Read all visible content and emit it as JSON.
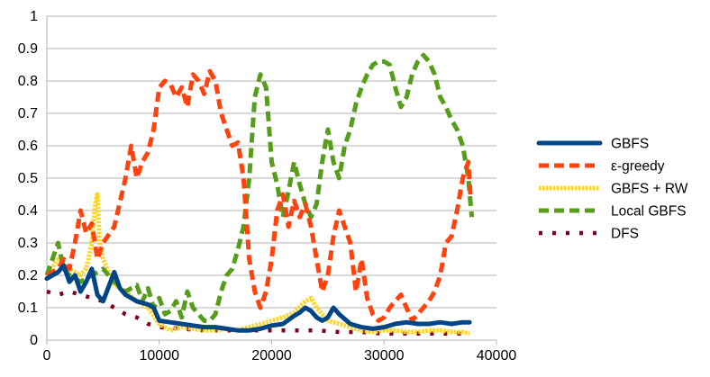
{
  "chart_data": {
    "type": "line",
    "title": "",
    "xlabel": "",
    "ylabel": "",
    "xlim": [
      0,
      40000
    ],
    "ylim": [
      0,
      1
    ],
    "xticks": [
      "0",
      "10000",
      "20000",
      "30000",
      "40000"
    ],
    "yticks": [
      "0",
      "0.1",
      "0.2",
      "0.3",
      "0.4",
      "0.5",
      "0.6",
      "0.7",
      "0.8",
      "0.9",
      "1"
    ],
    "grid": "horizontal",
    "legend_position": "right",
    "series": [
      {
        "name": "GBFS",
        "color": "#004586",
        "style": "solid",
        "points": [
          [
            0,
            0.19
          ],
          [
            1000,
            0.21
          ],
          [
            1500,
            0.23
          ],
          [
            2000,
            0.18
          ],
          [
            2500,
            0.2
          ],
          [
            3000,
            0.15
          ],
          [
            3500,
            0.18
          ],
          [
            4000,
            0.22
          ],
          [
            4500,
            0.14
          ],
          [
            5000,
            0.12
          ],
          [
            6000,
            0.21
          ],
          [
            6500,
            0.16
          ],
          [
            7000,
            0.14
          ],
          [
            8000,
            0.12
          ],
          [
            9000,
            0.11
          ],
          [
            9500,
            0.1
          ],
          [
            10000,
            0.06
          ],
          [
            11000,
            0.055
          ],
          [
            12000,
            0.05
          ],
          [
            13000,
            0.045
          ],
          [
            14000,
            0.04
          ],
          [
            15000,
            0.04
          ],
          [
            16000,
            0.035
          ],
          [
            17000,
            0.03
          ],
          [
            18000,
            0.03
          ],
          [
            19000,
            0.035
          ],
          [
            20000,
            0.045
          ],
          [
            21000,
            0.05
          ],
          [
            22000,
            0.075
          ],
          [
            22500,
            0.085
          ],
          [
            23000,
            0.1
          ],
          [
            23500,
            0.09
          ],
          [
            24000,
            0.07
          ],
          [
            24500,
            0.06
          ],
          [
            25000,
            0.07
          ],
          [
            25500,
            0.1
          ],
          [
            26000,
            0.08
          ],
          [
            27000,
            0.05
          ],
          [
            28000,
            0.04
          ],
          [
            29000,
            0.035
          ],
          [
            30000,
            0.04
          ],
          [
            31000,
            0.05
          ],
          [
            32000,
            0.055
          ],
          [
            33000,
            0.05
          ],
          [
            34000,
            0.05
          ],
          [
            35000,
            0.055
          ],
          [
            36000,
            0.05
          ],
          [
            37000,
            0.055
          ],
          [
            37600,
            0.055
          ]
        ]
      },
      {
        "name": "ε-greedy",
        "color": "#ff420e",
        "style": "dashed",
        "points": [
          [
            0,
            0.2
          ],
          [
            1000,
            0.22
          ],
          [
            1500,
            0.25
          ],
          [
            2000,
            0.22
          ],
          [
            2500,
            0.3
          ],
          [
            3000,
            0.4
          ],
          [
            3500,
            0.33
          ],
          [
            4000,
            0.36
          ],
          [
            4500,
            0.25
          ],
          [
            5000,
            0.3
          ],
          [
            6000,
            0.35
          ],
          [
            7000,
            0.5
          ],
          [
            7500,
            0.6
          ],
          [
            8000,
            0.5
          ],
          [
            8500,
            0.55
          ],
          [
            9000,
            0.58
          ],
          [
            9500,
            0.65
          ],
          [
            10000,
            0.78
          ],
          [
            10500,
            0.8
          ],
          [
            11000,
            0.79
          ],
          [
            11500,
            0.75
          ],
          [
            12000,
            0.78
          ],
          [
            12500,
            0.72
          ],
          [
            13000,
            0.82
          ],
          [
            13500,
            0.8
          ],
          [
            14000,
            0.76
          ],
          [
            14500,
            0.83
          ],
          [
            15000,
            0.8
          ],
          [
            15500,
            0.7
          ],
          [
            16000,
            0.65
          ],
          [
            16500,
            0.6
          ],
          [
            17000,
            0.61
          ],
          [
            17500,
            0.5
          ],
          [
            18000,
            0.25
          ],
          [
            18500,
            0.15
          ],
          [
            19000,
            0.1
          ],
          [
            19500,
            0.15
          ],
          [
            20000,
            0.25
          ],
          [
            20500,
            0.4
          ],
          [
            21000,
            0.45
          ],
          [
            21500,
            0.35
          ],
          [
            22000,
            0.43
          ],
          [
            22500,
            0.38
          ],
          [
            23000,
            0.42
          ],
          [
            23500,
            0.35
          ],
          [
            24000,
            0.25
          ],
          [
            24500,
            0.15
          ],
          [
            25000,
            0.2
          ],
          [
            25500,
            0.32
          ],
          [
            26000,
            0.4
          ],
          [
            26500,
            0.35
          ],
          [
            27000,
            0.3
          ],
          [
            27500,
            0.15
          ],
          [
            28000,
            0.25
          ],
          [
            28500,
            0.13
          ],
          [
            29000,
            0.08
          ],
          [
            29500,
            0.06
          ],
          [
            30000,
            0.07
          ],
          [
            30500,
            0.1
          ],
          [
            31000,
            0.12
          ],
          [
            31500,
            0.14
          ],
          [
            32000,
            0.1
          ],
          [
            32500,
            0.06
          ],
          [
            33000,
            0.08
          ],
          [
            33500,
            0.1
          ],
          [
            34000,
            0.12
          ],
          [
            34500,
            0.15
          ],
          [
            35000,
            0.2
          ],
          [
            35500,
            0.3
          ],
          [
            36000,
            0.32
          ],
          [
            36500,
            0.4
          ],
          [
            37000,
            0.5
          ],
          [
            37500,
            0.55
          ],
          [
            37700,
            0.44
          ]
        ]
      },
      {
        "name": "GBFS + RW",
        "color": "#ffd320",
        "style": "dotted",
        "points": [
          [
            0,
            0.2
          ],
          [
            1000,
            0.25
          ],
          [
            2000,
            0.22
          ],
          [
            3000,
            0.2
          ],
          [
            3500,
            0.22
          ],
          [
            4000,
            0.3
          ],
          [
            4300,
            0.42
          ],
          [
            4500,
            0.45
          ],
          [
            4700,
            0.3
          ],
          [
            5000,
            0.25
          ],
          [
            6000,
            0.17
          ],
          [
            7000,
            0.15
          ],
          [
            8000,
            0.12
          ],
          [
            9000,
            0.1
          ],
          [
            10000,
            0.05
          ],
          [
            11000,
            0.03
          ],
          [
            12000,
            0.04
          ],
          [
            13000,
            0.035
          ],
          [
            14000,
            0.03
          ],
          [
            15000,
            0.03
          ],
          [
            16000,
            0.035
          ],
          [
            17000,
            0.03
          ],
          [
            18000,
            0.04
          ],
          [
            19000,
            0.05
          ],
          [
            20000,
            0.06
          ],
          [
            21000,
            0.07
          ],
          [
            22000,
            0.085
          ],
          [
            23000,
            0.12
          ],
          [
            23500,
            0.13
          ],
          [
            24000,
            0.1
          ],
          [
            25000,
            0.06
          ],
          [
            26000,
            0.05
          ],
          [
            27000,
            0.04
          ],
          [
            28000,
            0.03
          ],
          [
            29000,
            0.025
          ],
          [
            30000,
            0.03
          ],
          [
            31000,
            0.03
          ],
          [
            32000,
            0.025
          ],
          [
            33000,
            0.025
          ],
          [
            34000,
            0.03
          ],
          [
            35000,
            0.03
          ],
          [
            36000,
            0.025
          ],
          [
            37000,
            0.025
          ],
          [
            37600,
            0.02
          ]
        ]
      },
      {
        "name": "Local GBFS",
        "color": "#579d1c",
        "style": "dashed",
        "points": [
          [
            0,
            0.2
          ],
          [
            500,
            0.25
          ],
          [
            1000,
            0.3
          ],
          [
            1500,
            0.22
          ],
          [
            2000,
            0.2
          ],
          [
            3000,
            0.18
          ],
          [
            4000,
            0.2
          ],
          [
            5000,
            0.22
          ],
          [
            6000,
            0.18
          ],
          [
            7000,
            0.15
          ],
          [
            8000,
            0.17
          ],
          [
            8500,
            0.12
          ],
          [
            9000,
            0.16
          ],
          [
            9500,
            0.1
          ],
          [
            10000,
            0.13
          ],
          [
            10500,
            0.08
          ],
          [
            11000,
            0.09
          ],
          [
            11500,
            0.12
          ],
          [
            12000,
            0.07
          ],
          [
            12500,
            0.15
          ],
          [
            13000,
            0.1
          ],
          [
            13500,
            0.08
          ],
          [
            14000,
            0.06
          ],
          [
            14500,
            0.06
          ],
          [
            15000,
            0.08
          ],
          [
            15500,
            0.15
          ],
          [
            16000,
            0.2
          ],
          [
            16500,
            0.22
          ],
          [
            17000,
            0.28
          ],
          [
            17500,
            0.35
          ],
          [
            18000,
            0.5
          ],
          [
            18500,
            0.75
          ],
          [
            19000,
            0.82
          ],
          [
            19500,
            0.78
          ],
          [
            20000,
            0.55
          ],
          [
            20500,
            0.48
          ],
          [
            21000,
            0.38
          ],
          [
            21500,
            0.46
          ],
          [
            22000,
            0.55
          ],
          [
            22500,
            0.48
          ],
          [
            23000,
            0.42
          ],
          [
            23500,
            0.38
          ],
          [
            24000,
            0.42
          ],
          [
            24500,
            0.55
          ],
          [
            25000,
            0.65
          ],
          [
            25500,
            0.55
          ],
          [
            26000,
            0.5
          ],
          [
            26500,
            0.6
          ],
          [
            27000,
            0.65
          ],
          [
            27500,
            0.73
          ],
          [
            28000,
            0.78
          ],
          [
            28500,
            0.82
          ],
          [
            29000,
            0.85
          ],
          [
            29500,
            0.86
          ],
          [
            30000,
            0.86
          ],
          [
            30500,
            0.85
          ],
          [
            31000,
            0.78
          ],
          [
            31500,
            0.72
          ],
          [
            32000,
            0.75
          ],
          [
            32500,
            0.82
          ],
          [
            33000,
            0.86
          ],
          [
            33500,
            0.88
          ],
          [
            34000,
            0.86
          ],
          [
            34500,
            0.82
          ],
          [
            35000,
            0.75
          ],
          [
            35500,
            0.72
          ],
          [
            36000,
            0.68
          ],
          [
            36500,
            0.65
          ],
          [
            37000,
            0.6
          ],
          [
            37500,
            0.5
          ],
          [
            37800,
            0.38
          ]
        ]
      },
      {
        "name": "DFS",
        "color": "#7e0021",
        "style": "sparse-dotted",
        "points": [
          [
            0,
            0.15
          ],
          [
            1000,
            0.14
          ],
          [
            2000,
            0.15
          ],
          [
            3000,
            0.14
          ],
          [
            4000,
            0.13
          ],
          [
            5000,
            0.12
          ],
          [
            6000,
            0.1
          ],
          [
            7000,
            0.08
          ],
          [
            8000,
            0.07
          ],
          [
            9000,
            0.05
          ],
          [
            10000,
            0.04
          ],
          [
            12000,
            0.035
          ],
          [
            14000,
            0.03
          ],
          [
            16000,
            0.03
          ],
          [
            18000,
            0.03
          ],
          [
            20000,
            0.03
          ],
          [
            22000,
            0.03
          ],
          [
            24000,
            0.03
          ],
          [
            26000,
            0.025
          ],
          [
            28000,
            0.025
          ],
          [
            30000,
            0.02
          ],
          [
            32000,
            0.02
          ],
          [
            34000,
            0.02
          ],
          [
            36000,
            0.02
          ],
          [
            37600,
            0.02
          ]
        ]
      }
    ]
  }
}
